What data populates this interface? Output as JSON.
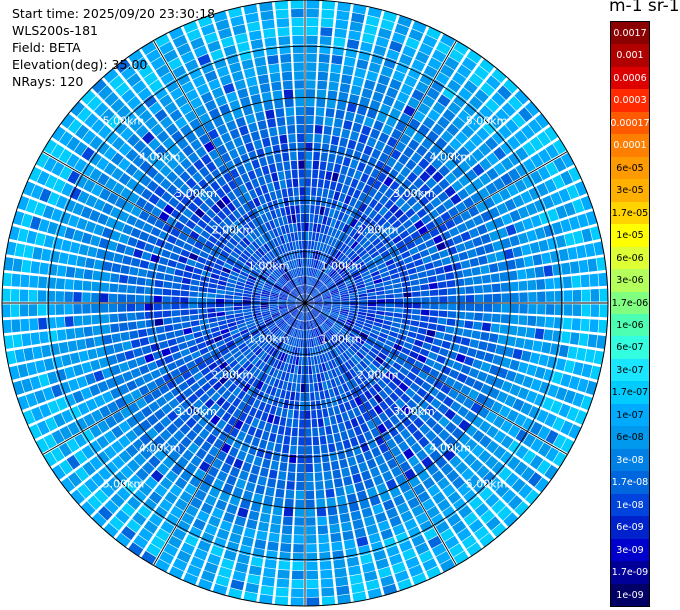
{
  "header": {
    "start_time": "Start time: 2025/09/20 23:30:18",
    "instrument": "WLS200s-181",
    "field": "Field: BETA",
    "elevation": "Elevation(deg): 35.00",
    "nrays": "NRays: 120"
  },
  "colorbar": {
    "unit_label": "m-1 sr-1",
    "ticks": [
      "0.0017",
      "0.001",
      "0.0006",
      "0.0003",
      "0.00017",
      "0.0001",
      "6e-05",
      "3e-05",
      "1.7e-05",
      "1e-05",
      "6e-06",
      "3e-06",
      "1.7e-06",
      "1e-06",
      "6e-07",
      "3e-07",
      "1.7e-07",
      "1e-07",
      "6e-08",
      "3e-08",
      "1.7e-08",
      "1e-08",
      "6e-09",
      "3e-09",
      "1.7e-09",
      "1e-09"
    ],
    "colors": [
      "#8b0000",
      "#b00000",
      "#dd0000",
      "#ff2a00",
      "#ff5a00",
      "#ff7f00",
      "#ff9a00",
      "#ffb000",
      "#ffd400",
      "#ffff00",
      "#ddff33",
      "#b5ff5c",
      "#80ff80",
      "#4dffb2",
      "#33ffe0",
      "#1ae6ff",
      "#00ccff",
      "#00aaff",
      "#0099ee",
      "#007fe5",
      "#0066dd",
      "#0044dd",
      "#0022cc",
      "#0000cc",
      "#000099",
      "#000066"
    ],
    "dark_text_indices": [
      0,
      1,
      2,
      3,
      4,
      5,
      19,
      20,
      21,
      22,
      23,
      24,
      25
    ]
  },
  "chart_data": {
    "type": "heatmap",
    "subtype": "polar PPI scan",
    "field": "BETA",
    "elevation_deg": 35.0,
    "nrays": 120,
    "range_rings_km": [
      1.0,
      2.0,
      3.0,
      4.0,
      5.0
    ],
    "ring_labels": [
      "1.00km",
      "2.00km",
      "3.00km",
      "4.00km",
      "5.00km"
    ],
    "max_range_km": 5.9,
    "grid": true,
    "colorscale": "log10, 1e-09 to 0.0017",
    "dominant_log10_beta": -7.9,
    "range_profile_log10_beta": [
      {
        "range_km": 0.5,
        "value": -7.9
      },
      {
        "range_km": 1.5,
        "value": -7.8
      },
      {
        "range_km": 2.5,
        "value": -7.8
      },
      {
        "range_km": 3.5,
        "value": -7.6
      },
      {
        "range_km": 4.5,
        "value": -7.2
      },
      {
        "range_km": 5.5,
        "value": -6.9
      }
    ]
  }
}
